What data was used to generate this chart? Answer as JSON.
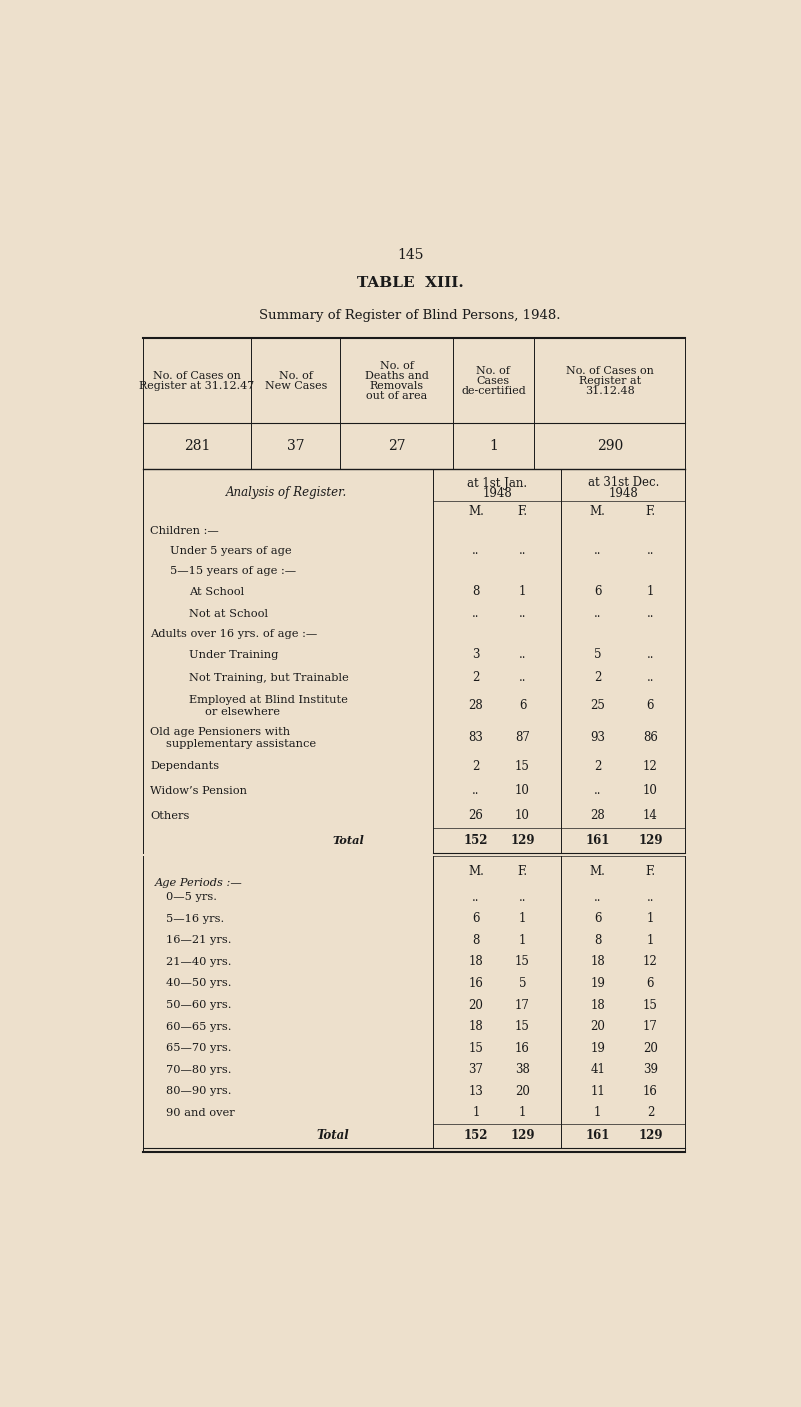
{
  "page_number": "145",
  "title": "TABLE  XIII.",
  "subtitle": "Summary of Register of Blind Persons, 1948.",
  "bg_color": "#ede0cc",
  "text_color": "#1a1a1a",
  "summary_headers": [
    "No. of Cases on\nRegister at 31.12.47",
    "No. of\nNew Cases",
    "No. of\nDeaths and\nRemovals\nout of area",
    "No. of\nCases\nde-certified",
    "No. of Cases on\nRegister at\n31.12.48"
  ],
  "summary_values": [
    "281",
    "37",
    "27",
    "1",
    "290"
  ],
  "analysis_label": "Analysis of Register.",
  "analysis_rows": [
    {
      "label": "Children :—",
      "indent": 0,
      "jan_m": "",
      "jan_f": "",
      "dec_m": "",
      "dec_f": "",
      "bold": false,
      "header": true
    },
    {
      "label": "Under 5 years of age",
      "indent": 1,
      "jan_m": "..",
      "jan_f": "..",
      "dec_m": "..",
      "dec_f": "..",
      "bold": false,
      "header": false
    },
    {
      "label": "5—15 years of age :—",
      "indent": 1,
      "jan_m": "",
      "jan_f": "",
      "dec_m": "",
      "dec_f": "",
      "bold": false,
      "header": true
    },
    {
      "label": "At School",
      "indent": 2,
      "jan_m": "8",
      "jan_f": "1",
      "dec_m": "6",
      "dec_f": "1",
      "bold": false,
      "header": false
    },
    {
      "label": "Not at School",
      "indent": 2,
      "jan_m": "..",
      "jan_f": "..",
      "dec_m": "..",
      "dec_f": "..",
      "bold": false,
      "header": false
    },
    {
      "label": "Adults over 16 yrs. of age :—",
      "indent": 0,
      "jan_m": "",
      "jan_f": "",
      "dec_m": "",
      "dec_f": "",
      "bold": false,
      "header": true
    },
    {
      "label": "Under Training",
      "indent": 2,
      "jan_m": "3",
      "jan_f": "..",
      "dec_m": "5",
      "dec_f": "..",
      "bold": false,
      "header": false
    },
    {
      "label": "Not Training, but Trainable",
      "indent": 2,
      "jan_m": "2",
      "jan_f": "..",
      "dec_m": "2",
      "dec_f": "..",
      "bold": false,
      "header": false
    },
    {
      "label": "Employed at Blind Institute\nor elsewhere",
      "indent": 2,
      "jan_m": "28",
      "jan_f": "6",
      "dec_m": "25",
      "dec_f": "6",
      "bold": false,
      "header": false
    },
    {
      "label": "Old age Pensioners with\nsupplementary assistance",
      "indent": 0,
      "jan_m": "83",
      "jan_f": "87",
      "dec_m": "93",
      "dec_f": "86",
      "bold": false,
      "header": false
    },
    {
      "label": "Dependants",
      "indent": 0,
      "jan_m": "2",
      "jan_f": "15",
      "dec_m": "2",
      "dec_f": "12",
      "bold": false,
      "header": false
    },
    {
      "label": "Widow’s Pension",
      "indent": 0,
      "jan_m": "..",
      "jan_f": "10",
      "dec_m": "..",
      "dec_f": "10",
      "bold": false,
      "header": false
    },
    {
      "label": "Others",
      "indent": 0,
      "jan_m": "26",
      "jan_f": "10",
      "dec_m": "28",
      "dec_f": "14",
      "bold": false,
      "header": false
    },
    {
      "label": "Total",
      "indent": 3,
      "jan_m": "152",
      "jan_f": "129",
      "dec_m": "161",
      "dec_f": "129",
      "bold": true,
      "header": false
    }
  ],
  "age_label": "Age Periods :—",
  "age_rows": [
    {
      "label": "0—5 yrs.",
      "jan_m": "..",
      "jan_f": "..",
      "dec_m": "..",
      "dec_f": ".."
    },
    {
      "label": "5—16 yrs.",
      "jan_m": "6",
      "jan_f": "1",
      "dec_m": "6",
      "dec_f": "1"
    },
    {
      "label": "16—21 yrs.",
      "jan_m": "8",
      "jan_f": "1",
      "dec_m": "8",
      "dec_f": "1"
    },
    {
      "label": "21—40 yrs.",
      "jan_m": "18",
      "jan_f": "15",
      "dec_m": "18",
      "dec_f": "12"
    },
    {
      "label": "40—50 yrs.",
      "jan_m": "16",
      "jan_f": "5",
      "dec_m": "19",
      "dec_f": "6"
    },
    {
      "label": "50—60 yrs.",
      "jan_m": "20",
      "jan_f": "17",
      "dec_m": "18",
      "dec_f": "15"
    },
    {
      "label": "60—65 yrs.",
      "jan_m": "18",
      "jan_f": "15",
      "dec_m": "20",
      "dec_f": "17"
    },
    {
      "label": "65—70 yrs.",
      "jan_m": "15",
      "jan_f": "16",
      "dec_m": "19",
      "dec_f": "20"
    },
    {
      "label": "70—80 yrs.",
      "jan_m": "37",
      "jan_f": "38",
      "dec_m": "41",
      "dec_f": "39"
    },
    {
      "label": "80—90 yrs.",
      "jan_m": "13",
      "jan_f": "20",
      "dec_m": "11",
      "dec_f": "16"
    },
    {
      "label": "90 and over",
      "jan_m": "1",
      "jan_f": "1",
      "dec_m": "1",
      "dec_f": "2"
    }
  ],
  "age_total": {
    "label": "Total",
    "jan_m": "152",
    "jan_f": "129",
    "dec_m": "161",
    "dec_f": "129"
  }
}
